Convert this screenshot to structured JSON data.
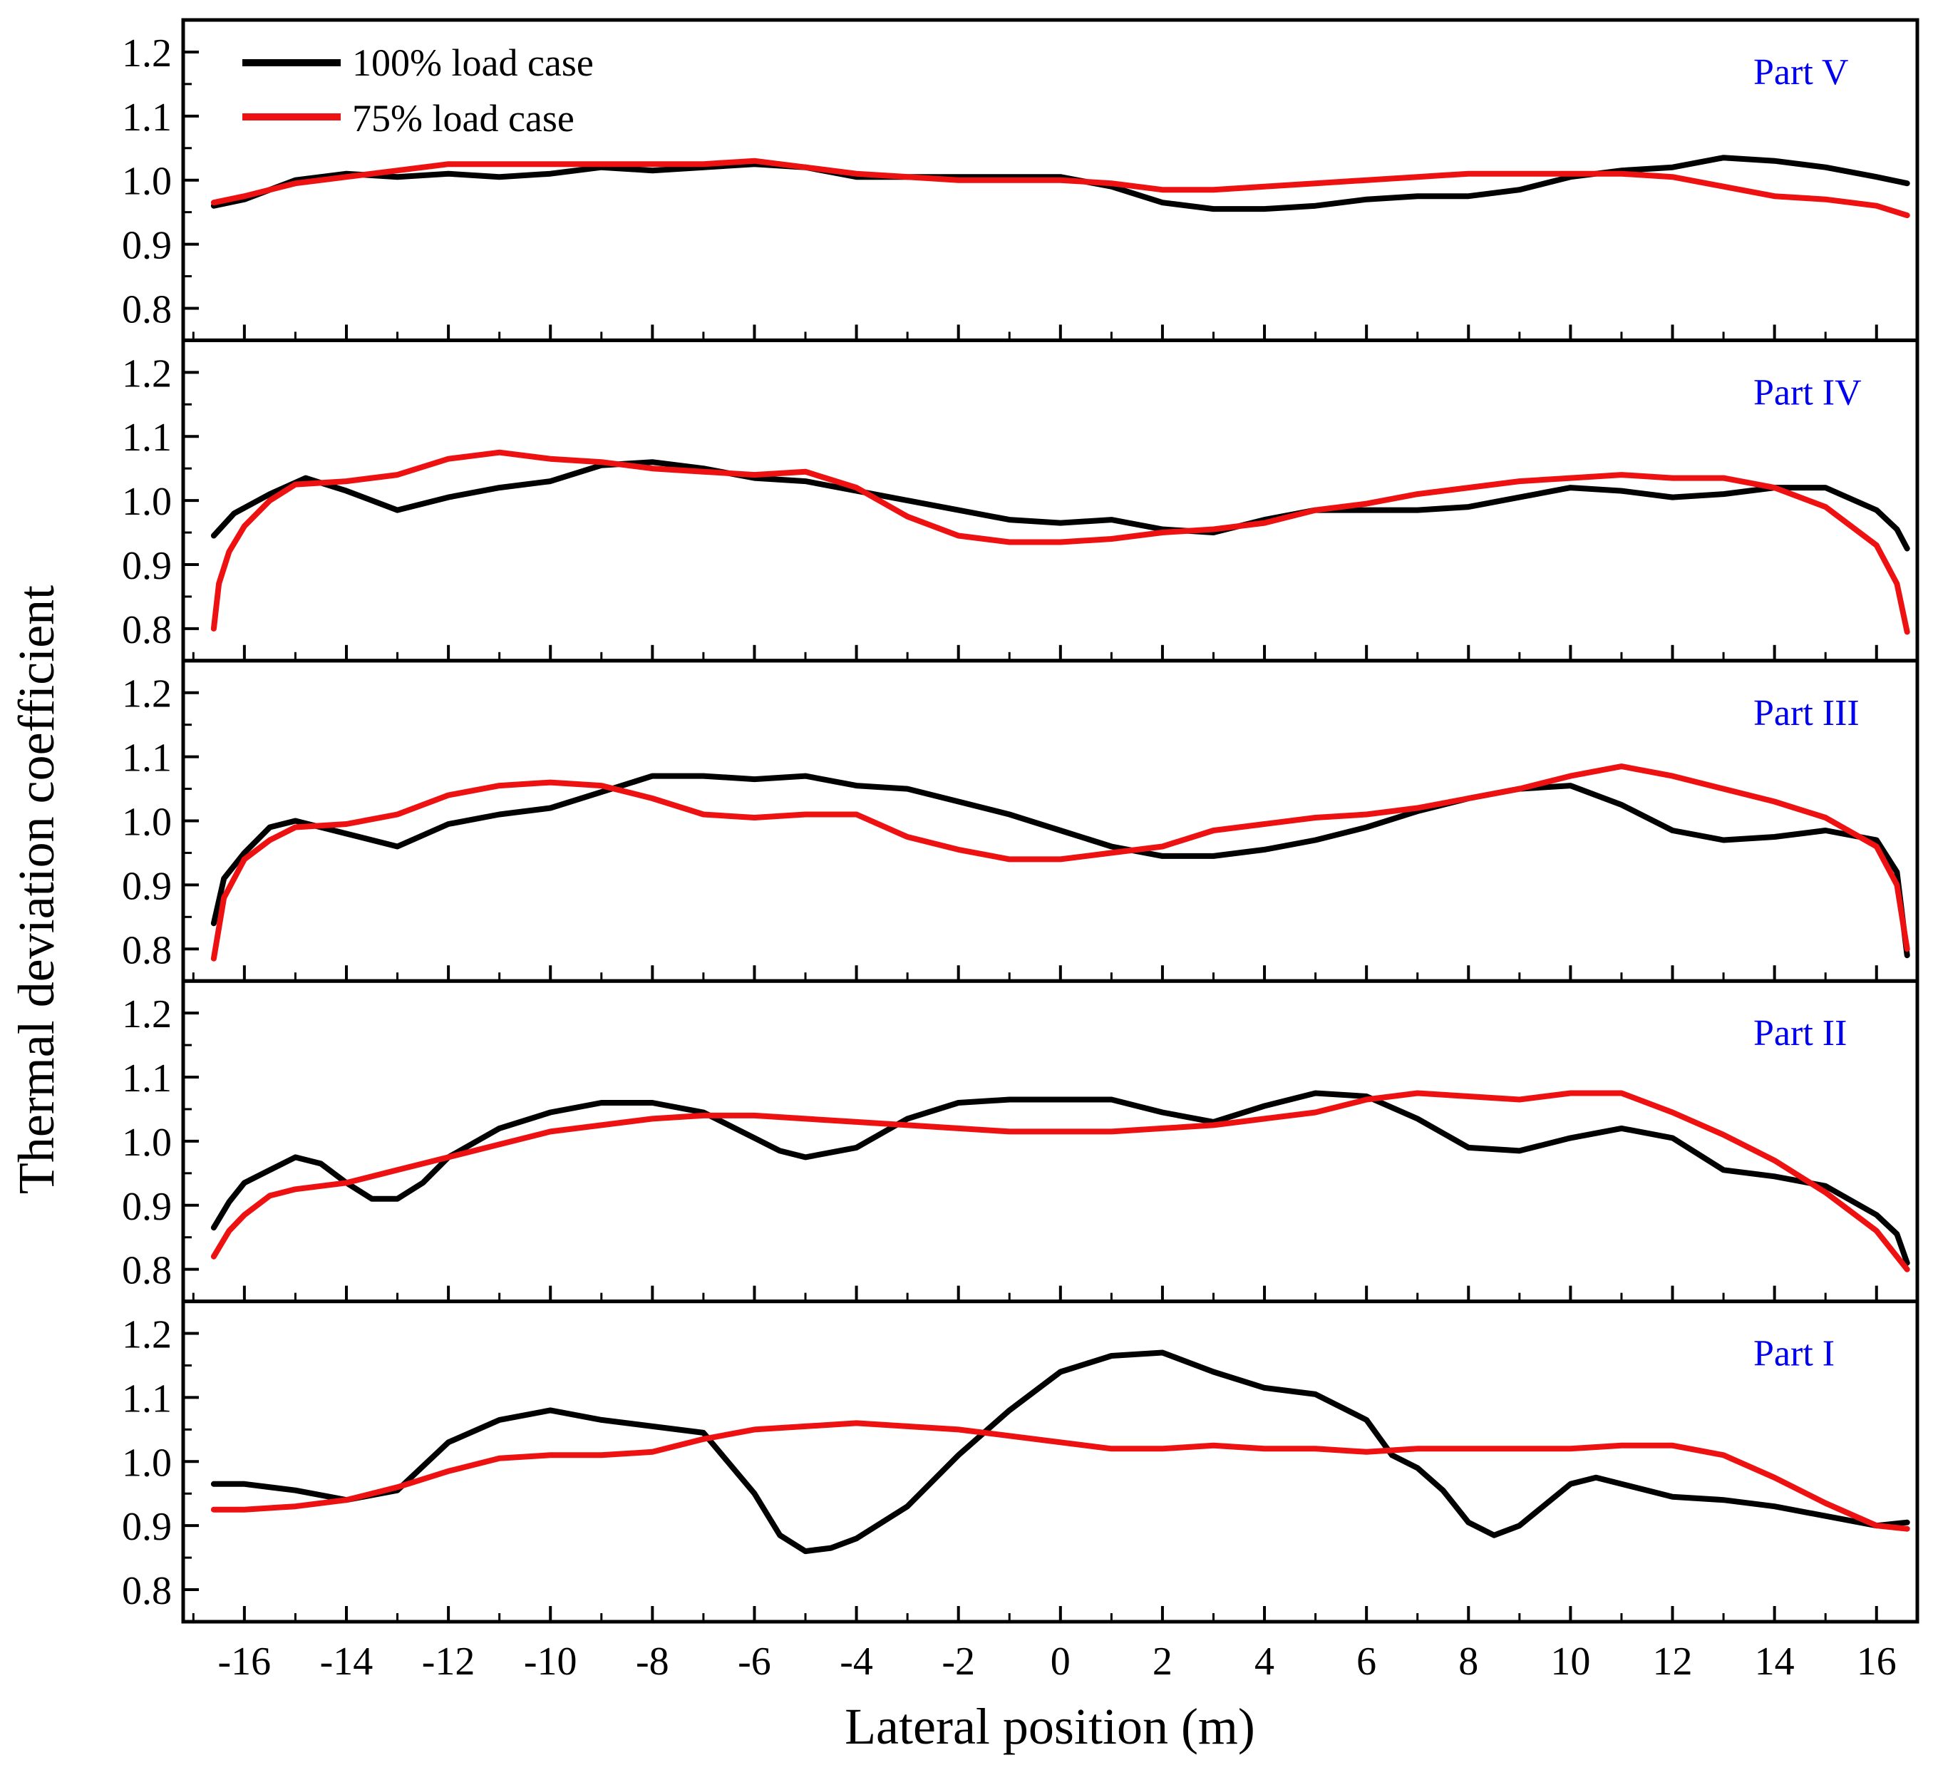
{
  "chart_data": {
    "type": "line",
    "xlabel": "Lateral position (m)",
    "ylabel": "Thermal deviation coefficient",
    "xlim": [
      -17.2,
      16.8
    ],
    "ylim": [
      0.75,
      1.25
    ],
    "xticks": [
      -16,
      -14,
      -12,
      -10,
      -8,
      -6,
      -4,
      -2,
      0,
      2,
      4,
      6,
      8,
      10,
      12,
      14,
      16
    ],
    "yticks": [
      0.8,
      0.9,
      1.0,
      1.1,
      1.2
    ],
    "ytick_labels": [
      "0.8",
      "0.9",
      "1.0",
      "1.1",
      "1.2"
    ],
    "legend": [
      {
        "name": "100% load case",
        "color": "#000000"
      },
      {
        "name": "75% load case",
        "color": "#ee1111"
      }
    ],
    "label_color": "#0000ee",
    "panels": [
      {
        "label": "Part V",
        "series": [
          {
            "name": "100% load case",
            "color": "#000000",
            "x": [
              -16.6,
              -16.0,
              -15.0,
              -14.0,
              -13.0,
              -12.0,
              -11.0,
              -10.0,
              -9.0,
              -8.0,
              -7.0,
              -6.0,
              -5.0,
              -4.0,
              -3.0,
              -2.0,
              -1.0,
              0.0,
              1.0,
              2.0,
              3.0,
              4.0,
              5.0,
              6.0,
              7.0,
              8.0,
              9.0,
              10.0,
              11.0,
              12.0,
              13.0,
              14.0,
              15.0,
              16.0,
              16.6
            ],
            "y": [
              0.96,
              0.97,
              1.0,
              1.01,
              1.005,
              1.01,
              1.005,
              1.01,
              1.02,
              1.015,
              1.02,
              1.025,
              1.02,
              1.005,
              1.005,
              1.005,
              1.005,
              1.005,
              0.99,
              0.965,
              0.955,
              0.955,
              0.96,
              0.97,
              0.975,
              0.975,
              0.985,
              1.005,
              1.015,
              1.02,
              1.035,
              1.03,
              1.02,
              1.005,
              0.995
            ]
          },
          {
            "name": "75% load case",
            "color": "#ee1111",
            "x": [
              -16.6,
              -16.0,
              -15.0,
              -14.0,
              -13.0,
              -12.0,
              -11.0,
              -10.0,
              -9.0,
              -8.0,
              -7.0,
              -6.0,
              -5.0,
              -4.0,
              -3.0,
              -2.0,
              -1.0,
              0.0,
              1.0,
              2.0,
              3.0,
              4.0,
              5.0,
              6.0,
              7.0,
              8.0,
              9.0,
              10.0,
              11.0,
              12.0,
              13.0,
              14.0,
              15.0,
              16.0,
              16.6
            ],
            "y": [
              0.965,
              0.975,
              0.995,
              1.005,
              1.015,
              1.025,
              1.025,
              1.025,
              1.025,
              1.025,
              1.025,
              1.03,
              1.02,
              1.01,
              1.005,
              1.0,
              1.0,
              1.0,
              0.995,
              0.985,
              0.985,
              0.99,
              0.995,
              1.0,
              1.005,
              1.01,
              1.01,
              1.01,
              1.01,
              1.005,
              0.99,
              0.975,
              0.97,
              0.96,
              0.945
            ]
          }
        ]
      },
      {
        "label": "Part IV",
        "series": [
          {
            "name": "100% load case",
            "color": "#000000",
            "x": [
              -16.6,
              -16.2,
              -15.5,
              -14.8,
              -14.0,
              -13.0,
              -12.0,
              -11.0,
              -10.0,
              -9.0,
              -8.0,
              -7.0,
              -6.0,
              -5.0,
              -4.0,
              -3.0,
              -2.0,
              -1.0,
              0.0,
              1.0,
              2.0,
              3.0,
              4.0,
              5.0,
              6.0,
              7.0,
              8.0,
              9.0,
              10.0,
              11.0,
              12.0,
              13.0,
              14.0,
              15.0,
              16.0,
              16.4,
              16.6
            ],
            "y": [
              0.945,
              0.98,
              1.01,
              1.035,
              1.015,
              0.985,
              1.005,
              1.02,
              1.03,
              1.055,
              1.06,
              1.05,
              1.035,
              1.03,
              1.015,
              1.0,
              0.985,
              0.97,
              0.965,
              0.97,
              0.955,
              0.95,
              0.97,
              0.985,
              0.985,
              0.985,
              0.99,
              1.005,
              1.02,
              1.015,
              1.005,
              1.01,
              1.02,
              1.02,
              0.985,
              0.955,
              0.925
            ]
          },
          {
            "name": "75% load case",
            "color": "#ee1111",
            "x": [
              -16.6,
              -16.5,
              -16.3,
              -16.0,
              -15.5,
              -15.0,
              -14.0,
              -13.0,
              -12.0,
              -11.0,
              -10.0,
              -9.0,
              -8.0,
              -7.0,
              -6.0,
              -5.0,
              -4.0,
              -3.0,
              -2.0,
              -1.0,
              0.0,
              1.0,
              2.0,
              3.0,
              4.0,
              5.0,
              6.0,
              7.0,
              8.0,
              9.0,
              10.0,
              11.0,
              12.0,
              13.0,
              14.0,
              15.0,
              16.0,
              16.4,
              16.6
            ],
            "y": [
              0.8,
              0.87,
              0.92,
              0.96,
              1.0,
              1.025,
              1.03,
              1.04,
              1.065,
              1.075,
              1.065,
              1.06,
              1.05,
              1.045,
              1.04,
              1.045,
              1.02,
              0.975,
              0.945,
              0.935,
              0.935,
              0.94,
              0.95,
              0.955,
              0.965,
              0.985,
              0.995,
              1.01,
              1.02,
              1.03,
              1.035,
              1.04,
              1.035,
              1.035,
              1.02,
              0.99,
              0.93,
              0.87,
              0.795
            ]
          }
        ]
      },
      {
        "label": "Part III",
        "series": [
          {
            "name": "100% load case",
            "color": "#000000",
            "x": [
              -16.6,
              -16.4,
              -16.0,
              -15.5,
              -15.0,
              -14.0,
              -13.0,
              -12.0,
              -11.0,
              -10.0,
              -9.0,
              -8.0,
              -7.0,
              -6.0,
              -5.0,
              -4.0,
              -3.0,
              -2.0,
              -1.0,
              0.0,
              1.0,
              2.0,
              3.0,
              4.0,
              5.0,
              6.0,
              7.0,
              8.0,
              9.0,
              10.0,
              11.0,
              12.0,
              13.0,
              14.0,
              15.0,
              16.0,
              16.4,
              16.6
            ],
            "y": [
              0.84,
              0.91,
              0.95,
              0.99,
              1.0,
              0.98,
              0.96,
              0.995,
              1.01,
              1.02,
              1.045,
              1.07,
              1.07,
              1.065,
              1.07,
              1.055,
              1.05,
              1.03,
              1.01,
              0.985,
              0.96,
              0.945,
              0.945,
              0.955,
              0.97,
              0.99,
              1.015,
              1.035,
              1.05,
              1.055,
              1.025,
              0.985,
              0.97,
              0.975,
              0.985,
              0.97,
              0.92,
              0.79
            ]
          },
          {
            "name": "75% load case",
            "color": "#ee1111",
            "x": [
              -16.6,
              -16.4,
              -16.0,
              -15.5,
              -15.0,
              -14.0,
              -13.0,
              -12.0,
              -11.0,
              -10.0,
              -9.0,
              -8.0,
              -7.0,
              -6.0,
              -5.0,
              -4.0,
              -3.0,
              -2.0,
              -1.0,
              0.0,
              1.0,
              2.0,
              3.0,
              4.0,
              5.0,
              6.0,
              7.0,
              8.0,
              9.0,
              10.0,
              11.0,
              12.0,
              13.0,
              14.0,
              15.0,
              16.0,
              16.4,
              16.6
            ],
            "y": [
              0.785,
              0.88,
              0.94,
              0.97,
              0.99,
              0.995,
              1.01,
              1.04,
              1.055,
              1.06,
              1.055,
              1.035,
              1.01,
              1.005,
              1.01,
              1.01,
              0.975,
              0.955,
              0.94,
              0.94,
              0.95,
              0.96,
              0.985,
              0.995,
              1.005,
              1.01,
              1.02,
              1.035,
              1.05,
              1.07,
              1.085,
              1.07,
              1.05,
              1.03,
              1.005,
              0.96,
              0.9,
              0.8
            ]
          }
        ]
      },
      {
        "label": "Part II",
        "series": [
          {
            "name": "100% load case",
            "color": "#000000",
            "x": [
              -16.6,
              -16.3,
              -16.0,
              -15.5,
              -15.0,
              -14.5,
              -14.0,
              -13.5,
              -13.0,
              -12.5,
              -12.0,
              -11.0,
              -10.0,
              -9.0,
              -8.0,
              -7.0,
              -6.0,
              -5.5,
              -5.0,
              -4.0,
              -3.0,
              -2.0,
              -1.0,
              0.0,
              1.0,
              2.0,
              3.0,
              4.0,
              5.0,
              6.0,
              7.0,
              8.0,
              9.0,
              10.0,
              11.0,
              12.0,
              13.0,
              14.0,
              15.0,
              16.0,
              16.4,
              16.6
            ],
            "y": [
              0.865,
              0.905,
              0.935,
              0.955,
              0.975,
              0.965,
              0.935,
              0.91,
              0.91,
              0.935,
              0.975,
              1.02,
              1.045,
              1.06,
              1.06,
              1.045,
              1.005,
              0.985,
              0.975,
              0.99,
              1.035,
              1.06,
              1.065,
              1.065,
              1.065,
              1.045,
              1.03,
              1.055,
              1.075,
              1.07,
              1.035,
              0.99,
              0.985,
              1.005,
              1.02,
              1.005,
              0.955,
              0.945,
              0.93,
              0.885,
              0.855,
              0.81
            ]
          },
          {
            "name": "75% load case",
            "color": "#ee1111",
            "x": [
              -16.6,
              -16.3,
              -16.0,
              -15.5,
              -15.0,
              -14.0,
              -13.0,
              -12.0,
              -11.0,
              -10.0,
              -9.0,
              -8.0,
              -7.0,
              -6.0,
              -5.0,
              -4.0,
              -3.0,
              -2.0,
              -1.0,
              0.0,
              1.0,
              2.0,
              3.0,
              4.0,
              5.0,
              6.0,
              7.0,
              8.0,
              9.0,
              10.0,
              11.0,
              12.0,
              13.0,
              14.0,
              15.0,
              16.0,
              16.6
            ],
            "y": [
              0.82,
              0.86,
              0.885,
              0.915,
              0.925,
              0.935,
              0.955,
              0.975,
              0.995,
              1.015,
              1.025,
              1.035,
              1.04,
              1.04,
              1.035,
              1.03,
              1.025,
              1.02,
              1.015,
              1.015,
              1.015,
              1.02,
              1.025,
              1.035,
              1.045,
              1.065,
              1.075,
              1.07,
              1.065,
              1.075,
              1.075,
              1.045,
              1.01,
              0.97,
              0.92,
              0.86,
              0.8
            ]
          }
        ]
      },
      {
        "label": "Part I",
        "series": [
          {
            "name": "100% load case",
            "color": "#000000",
            "x": [
              -16.6,
              -16.0,
              -15.0,
              -14.0,
              -13.0,
              -12.0,
              -11.0,
              -10.0,
              -9.0,
              -8.0,
              -7.0,
              -6.0,
              -5.5,
              -5.0,
              -4.5,
              -4.0,
              -3.0,
              -2.0,
              -1.0,
              0.0,
              1.0,
              2.0,
              3.0,
              4.0,
              5.0,
              6.0,
              6.5,
              7.0,
              7.5,
              8.0,
              8.5,
              9.0,
              10.0,
              10.5,
              11.0,
              12.0,
              13.0,
              14.0,
              15.0,
              16.0,
              16.6
            ],
            "y": [
              0.965,
              0.965,
              0.955,
              0.94,
              0.955,
              1.03,
              1.065,
              1.08,
              1.065,
              1.055,
              1.045,
              0.95,
              0.885,
              0.86,
              0.865,
              0.88,
              0.93,
              1.01,
              1.08,
              1.14,
              1.165,
              1.17,
              1.14,
              1.115,
              1.105,
              1.065,
              1.01,
              0.99,
              0.955,
              0.905,
              0.885,
              0.9,
              0.965,
              0.975,
              0.965,
              0.945,
              0.94,
              0.93,
              0.915,
              0.9,
              0.905
            ]
          },
          {
            "name": "75% load case",
            "color": "#ee1111",
            "x": [
              -16.6,
              -16.0,
              -15.0,
              -14.0,
              -13.0,
              -12.0,
              -11.0,
              -10.0,
              -9.0,
              -8.0,
              -7.0,
              -6.0,
              -5.0,
              -4.0,
              -3.0,
              -2.0,
              -1.0,
              0.0,
              1.0,
              2.0,
              3.0,
              4.0,
              5.0,
              6.0,
              7.0,
              8.0,
              9.0,
              10.0,
              11.0,
              12.0,
              13.0,
              14.0,
              15.0,
              16.0,
              16.6
            ],
            "y": [
              0.925,
              0.925,
              0.93,
              0.94,
              0.96,
              0.985,
              1.005,
              1.01,
              1.01,
              1.015,
              1.035,
              1.05,
              1.055,
              1.06,
              1.055,
              1.05,
              1.04,
              1.03,
              1.02,
              1.02,
              1.025,
              1.02,
              1.02,
              1.015,
              1.02,
              1.02,
              1.02,
              1.02,
              1.025,
              1.025,
              1.01,
              0.975,
              0.935,
              0.9,
              0.895
            ]
          }
        ]
      }
    ]
  }
}
